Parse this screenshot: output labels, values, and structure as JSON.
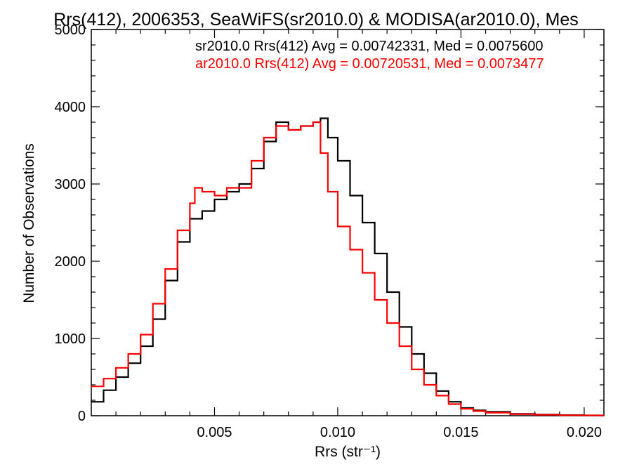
{
  "chart_data": {
    "type": "line",
    "title": "Rrs(412), 2006353, SeaWiFS(sr2010.0) & MODISA(ar2010.0), Mes",
    "xlabel": "Rrs (str⁻¹)",
    "ylabel": "Number of Observations",
    "xlim": [
      0.0,
      0.0208
    ],
    "ylim": [
      0,
      5000
    ],
    "xticks": [
      0.005,
      0.01,
      0.015,
      0.02
    ],
    "xtick_labels": [
      "0.005",
      "0.010",
      "0.015",
      "0.020"
    ],
    "yticks": [
      0,
      1000,
      2000,
      3000,
      4000,
      5000
    ],
    "ytick_labels": [
      "0",
      "1000",
      "2000",
      "3000",
      "4000",
      "5000"
    ],
    "grid": false,
    "legend_position": "top-right",
    "colors": {
      "series1": "#000000",
      "series2": "#ff0000",
      "axes": "#000000"
    },
    "annotations": [
      "sr2010.0 Rrs(412) Avg = 0.00742331, Med = 0.0075600",
      "ar2010.0 Rrs(412) Avg = 0.00720531, Med = 0.0073477"
    ],
    "series": [
      {
        "name": "sr2010.0 Rrs(412)",
        "color": "#000000",
        "x": [
          0.0,
          0.0005,
          0.001,
          0.0015,
          0.002,
          0.0025,
          0.003,
          0.0035,
          0.004,
          0.0045,
          0.005,
          0.0055,
          0.006,
          0.0065,
          0.007,
          0.0075,
          0.008,
          0.0085,
          0.009,
          0.0093,
          0.0096,
          0.01,
          0.0105,
          0.011,
          0.0115,
          0.012,
          0.0125,
          0.013,
          0.0135,
          0.014,
          0.0145,
          0.015,
          0.0155,
          0.016,
          0.017,
          0.018,
          0.019,
          0.02,
          0.0208
        ],
        "y": [
          180,
          330,
          500,
          680,
          900,
          1250,
          1750,
          2250,
          2550,
          2650,
          2800,
          2900,
          3000,
          3200,
          3550,
          3800,
          3700,
          3750,
          3800,
          3850,
          3600,
          3300,
          2850,
          2500,
          2100,
          1600,
          1150,
          800,
          550,
          320,
          180,
          100,
          70,
          50,
          25,
          15,
          8,
          5,
          5
        ]
      },
      {
        "name": "ar2010.0 Rrs(412)",
        "color": "#ff0000",
        "x": [
          0.0,
          0.0005,
          0.001,
          0.0015,
          0.002,
          0.0025,
          0.003,
          0.0035,
          0.004,
          0.0042,
          0.0045,
          0.005,
          0.0055,
          0.006,
          0.0065,
          0.007,
          0.0075,
          0.008,
          0.0085,
          0.009,
          0.0093,
          0.0096,
          0.01,
          0.0105,
          0.011,
          0.0115,
          0.012,
          0.0125,
          0.013,
          0.0135,
          0.014,
          0.0145,
          0.015,
          0.0155,
          0.016,
          0.017,
          0.018,
          0.019,
          0.02,
          0.0208
        ],
        "y": [
          380,
          480,
          620,
          800,
          1050,
          1450,
          1900,
          2400,
          2750,
          2950,
          2900,
          2850,
          2950,
          2950,
          3300,
          3600,
          3750,
          3700,
          3750,
          3800,
          3400,
          2900,
          2450,
          2150,
          1850,
          1500,
          1200,
          900,
          600,
          400,
          260,
          150,
          90,
          60,
          40,
          20,
          12,
          6,
          4,
          4
        ]
      }
    ]
  }
}
